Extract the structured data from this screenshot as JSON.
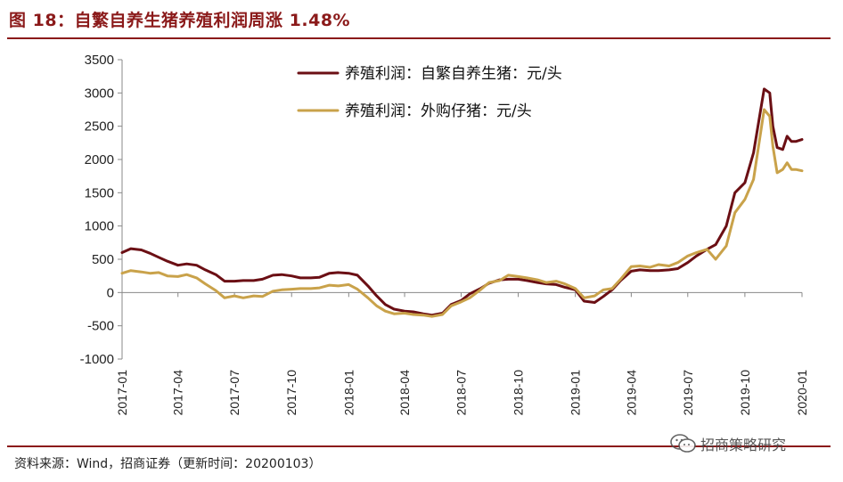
{
  "title": "图 18：自繁自养生猪养殖利润周涨 1.48%",
  "source": "资料来源：Wind，招商证券（更新时间：20200103）",
  "watermark": "招商策略研究",
  "watermark_icon": "wechat-icon",
  "chart_data": {
    "type": "line",
    "ylim": [
      -1000,
      3500
    ],
    "yticks": [
      3500,
      3000,
      2500,
      2000,
      1500,
      1000,
      500,
      0,
      -500,
      -1000
    ],
    "x_start": "2017-01",
    "x_end": "2020-01",
    "xticks": [
      "2017-01",
      "2017-04",
      "2017-07",
      "2017-10",
      "2018-01",
      "2018-04",
      "2018-07",
      "2018-10",
      "2019-01",
      "2019-04",
      "2019-07",
      "2019-10",
      "2020-01"
    ],
    "grid": false,
    "legend": "top-center",
    "series": [
      {
        "name": "养殖利润：自繁自养生猪：元/头",
        "color": "#6b0f14",
        "points": [
          [
            "2017-01",
            600
          ],
          [
            "2017-01-15",
            660
          ],
          [
            "2017-02",
            640
          ],
          [
            "2017-02-15",
            590
          ],
          [
            "2017-03",
            530
          ],
          [
            "2017-03-15",
            470
          ],
          [
            "2017-04",
            410
          ],
          [
            "2017-04-15",
            430
          ],
          [
            "2017-05",
            410
          ],
          [
            "2017-05-15",
            340
          ],
          [
            "2017-06",
            270
          ],
          [
            "2017-06-15",
            170
          ],
          [
            "2017-07",
            170
          ],
          [
            "2017-07-15",
            180
          ],
          [
            "2017-08",
            180
          ],
          [
            "2017-08-15",
            200
          ],
          [
            "2017-09",
            260
          ],
          [
            "2017-09-15",
            270
          ],
          [
            "2017-10",
            250
          ],
          [
            "2017-10-15",
            220
          ],
          [
            "2017-11",
            220
          ],
          [
            "2017-11-15",
            230
          ],
          [
            "2017-12",
            290
          ],
          [
            "2017-12-15",
            300
          ],
          [
            "2018-01",
            290
          ],
          [
            "2018-01-15",
            260
          ],
          [
            "2018-02",
            100
          ],
          [
            "2018-02-15",
            -50
          ],
          [
            "2018-03",
            -180
          ],
          [
            "2018-03-15",
            -250
          ],
          [
            "2018-04",
            -280
          ],
          [
            "2018-04-15",
            -290
          ],
          [
            "2018-05",
            -320
          ],
          [
            "2018-05-15",
            -340
          ],
          [
            "2018-06",
            -310
          ],
          [
            "2018-06-15",
            -180
          ],
          [
            "2018-07",
            -120
          ],
          [
            "2018-07-15",
            -20
          ],
          [
            "2018-08",
            60
          ],
          [
            "2018-08-15",
            140
          ],
          [
            "2018-09",
            190
          ],
          [
            "2018-09-15",
            200
          ],
          [
            "2018-10",
            200
          ],
          [
            "2018-10-15",
            180
          ],
          [
            "2018-11",
            150
          ],
          [
            "2018-11-15",
            130
          ],
          [
            "2018-12",
            120
          ],
          [
            "2018-12-15",
            80
          ],
          [
            "2019-01",
            40
          ],
          [
            "2019-01-15",
            -130
          ],
          [
            "2019-02",
            -150
          ],
          [
            "2019-02-15",
            -60
          ],
          [
            "2019-03",
            40
          ],
          [
            "2019-03-15",
            180
          ],
          [
            "2019-04",
            320
          ],
          [
            "2019-04-15",
            340
          ],
          [
            "2019-05",
            330
          ],
          [
            "2019-05-15",
            330
          ],
          [
            "2019-06",
            340
          ],
          [
            "2019-06-15",
            360
          ],
          [
            "2019-07",
            450
          ],
          [
            "2019-07-15",
            550
          ],
          [
            "2019-08",
            650
          ],
          [
            "2019-08-15",
            720
          ],
          [
            "2019-09",
            1000
          ],
          [
            "2019-09-15",
            1500
          ],
          [
            "2019-10",
            1650
          ],
          [
            "2019-10-15",
            2100
          ],
          [
            "2019-11",
            3060
          ],
          [
            "2019-11-10",
            3000
          ],
          [
            "2019-11-15",
            2500
          ],
          [
            "2019-11-22",
            2180
          ],
          [
            "2019-12",
            2150
          ],
          [
            "2019-12-08",
            2350
          ],
          [
            "2019-12-15",
            2270
          ],
          [
            "2019-12-22",
            2270
          ],
          [
            "2020-01",
            2300
          ]
        ]
      },
      {
        "name": "养殖利润：外购仔猪：元/头",
        "color": "#c9a24a",
        "points": [
          [
            "2017-01",
            290
          ],
          [
            "2017-01-15",
            330
          ],
          [
            "2017-02",
            310
          ],
          [
            "2017-02-15",
            290
          ],
          [
            "2017-03",
            300
          ],
          [
            "2017-03-15",
            250
          ],
          [
            "2017-04",
            240
          ],
          [
            "2017-04-15",
            270
          ],
          [
            "2017-05",
            220
          ],
          [
            "2017-05-15",
            130
          ],
          [
            "2017-06",
            30
          ],
          [
            "2017-06-15",
            -80
          ],
          [
            "2017-07",
            -50
          ],
          [
            "2017-07-15",
            -80
          ],
          [
            "2017-08",
            -50
          ],
          [
            "2017-08-15",
            -60
          ],
          [
            "2017-09",
            20
          ],
          [
            "2017-09-15",
            40
          ],
          [
            "2017-10",
            50
          ],
          [
            "2017-10-15",
            60
          ],
          [
            "2017-11",
            60
          ],
          [
            "2017-11-15",
            70
          ],
          [
            "2017-12",
            110
          ],
          [
            "2017-12-15",
            100
          ],
          [
            "2018-01",
            120
          ],
          [
            "2018-01-15",
            50
          ],
          [
            "2018-02",
            -80
          ],
          [
            "2018-02-15",
            -200
          ],
          [
            "2018-03",
            -280
          ],
          [
            "2018-03-15",
            -320
          ],
          [
            "2018-04",
            -310
          ],
          [
            "2018-04-15",
            -330
          ],
          [
            "2018-05",
            -340
          ],
          [
            "2018-05-15",
            -360
          ],
          [
            "2018-06",
            -330
          ],
          [
            "2018-06-15",
            -200
          ],
          [
            "2018-07",
            -140
          ],
          [
            "2018-07-15",
            -80
          ],
          [
            "2018-08",
            40
          ],
          [
            "2018-08-15",
            150
          ],
          [
            "2018-09",
            180
          ],
          [
            "2018-09-15",
            260
          ],
          [
            "2018-10",
            240
          ],
          [
            "2018-10-15",
            220
          ],
          [
            "2018-11",
            190
          ],
          [
            "2018-11-15",
            150
          ],
          [
            "2018-12",
            170
          ],
          [
            "2018-12-15",
            130
          ],
          [
            "2019-01",
            60
          ],
          [
            "2019-01-15",
            -80
          ],
          [
            "2019-02",
            -50
          ],
          [
            "2019-02-15",
            40
          ],
          [
            "2019-03",
            60
          ],
          [
            "2019-03-15",
            200
          ],
          [
            "2019-04",
            390
          ],
          [
            "2019-04-15",
            400
          ],
          [
            "2019-05",
            380
          ],
          [
            "2019-05-15",
            420
          ],
          [
            "2019-06",
            400
          ],
          [
            "2019-06-15",
            450
          ],
          [
            "2019-07",
            550
          ],
          [
            "2019-07-15",
            600
          ],
          [
            "2019-08",
            650
          ],
          [
            "2019-08-15",
            500
          ],
          [
            "2019-09",
            700
          ],
          [
            "2019-09-15",
            1200
          ],
          [
            "2019-10",
            1400
          ],
          [
            "2019-10-15",
            1700
          ],
          [
            "2019-11",
            2750
          ],
          [
            "2019-11-10",
            2650
          ],
          [
            "2019-11-15",
            2200
          ],
          [
            "2019-11-22",
            1800
          ],
          [
            "2019-12",
            1850
          ],
          [
            "2019-12-08",
            1950
          ],
          [
            "2019-12-15",
            1850
          ],
          [
            "2019-12-22",
            1850
          ],
          [
            "2020-01",
            1830
          ]
        ]
      }
    ]
  }
}
